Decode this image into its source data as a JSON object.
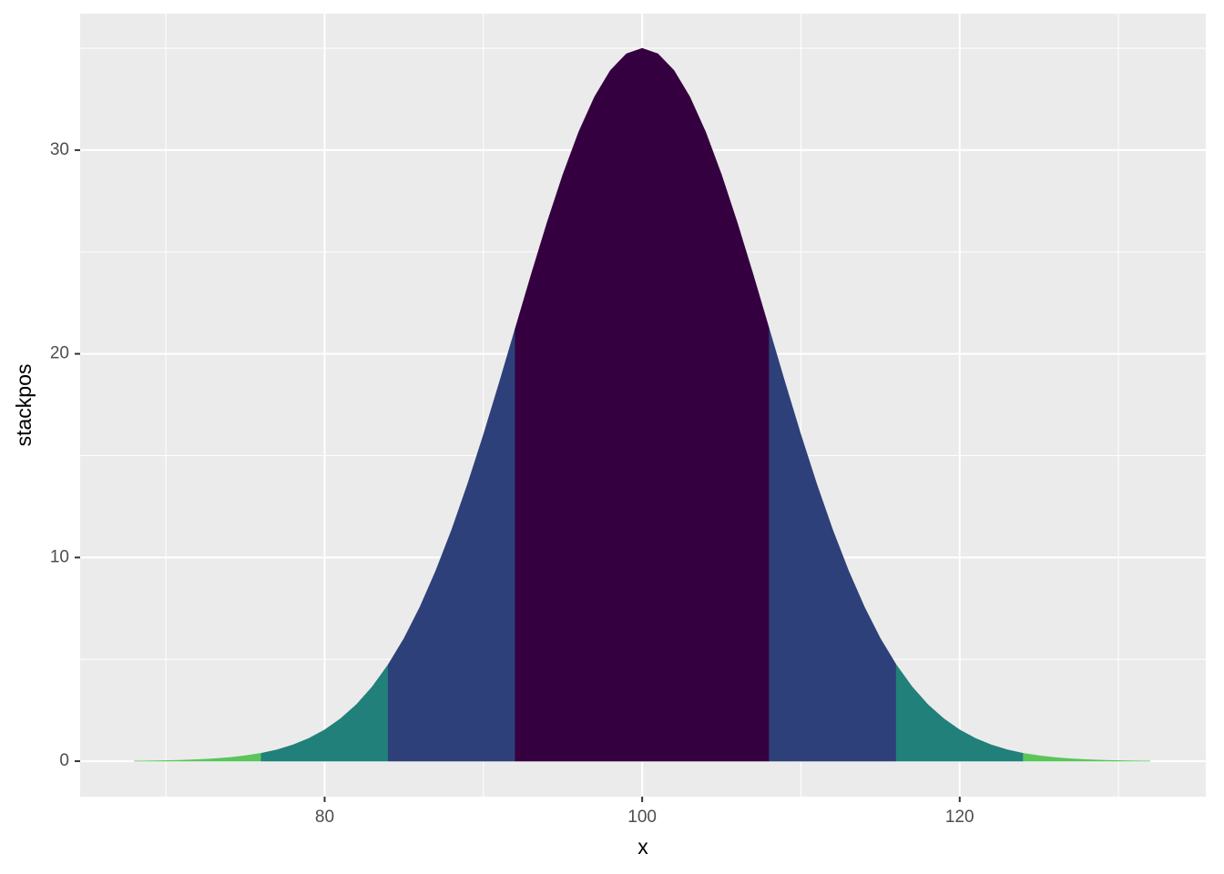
{
  "chart_data": {
    "type": "area",
    "xlabel": "x",
    "ylabel": "stackpos",
    "xlim": [
      64.6,
      135.5
    ],
    "ylim": [
      -1.74,
      36.7
    ],
    "xticks": [
      80,
      100,
      120
    ],
    "yticks": [
      0,
      10,
      20,
      30
    ],
    "xminorticks": [
      70,
      90,
      110,
      130
    ],
    "yminorticks": [
      5,
      15,
      25,
      35
    ],
    "grid": true,
    "background": "#ebebeb",
    "series": [
      {
        "color": "#5ac55b",
        "x": [
          68,
          69,
          70,
          71,
          72,
          73,
          74,
          75,
          76
        ],
        "values": [
          0.01,
          0.02,
          0.03,
          0.05,
          0.08,
          0.12,
          0.18,
          0.27,
          0.39
        ]
      },
      {
        "color": "#21807a",
        "x": [
          76,
          77,
          78,
          79,
          80,
          81,
          82,
          83,
          84
        ],
        "values": [
          0.39,
          0.56,
          0.8,
          1.12,
          1.54,
          2.09,
          2.78,
          3.66,
          4.74
        ]
      },
      {
        "color": "#2e4079",
        "x": [
          84,
          85,
          86,
          87,
          88,
          89,
          90,
          91,
          92
        ],
        "values": [
          4.74,
          6.03,
          7.57,
          9.35,
          11.36,
          13.6,
          16.02,
          18.59,
          21.23
        ]
      },
      {
        "color": "#35003f",
        "x": [
          92,
          93,
          94,
          95,
          96,
          97,
          98,
          99,
          100,
          101,
          102,
          103,
          104,
          105,
          106,
          107,
          108
        ],
        "values": [
          21.23,
          23.87,
          26.42,
          28.79,
          30.89,
          32.62,
          33.92,
          34.73,
          35,
          34.73,
          33.92,
          32.62,
          30.89,
          28.79,
          26.42,
          23.87,
          21.23
        ]
      },
      {
        "color": "#2e4079",
        "x": [
          108,
          109,
          110,
          111,
          112,
          113,
          114,
          115,
          116
        ],
        "values": [
          21.23,
          18.59,
          16.02,
          13.6,
          11.36,
          9.35,
          7.57,
          6.03,
          4.74
        ]
      },
      {
        "color": "#21807a",
        "x": [
          116,
          117,
          118,
          119,
          120,
          121,
          122,
          123,
          124
        ],
        "values": [
          4.74,
          3.66,
          2.78,
          2.09,
          1.54,
          1.12,
          0.8,
          0.56,
          0.39
        ]
      },
      {
        "color": "#5ac55b",
        "x": [
          124,
          125,
          126,
          127,
          128,
          129,
          130,
          131,
          132
        ],
        "values": [
          0.39,
          0.27,
          0.18,
          0.12,
          0.08,
          0.05,
          0.03,
          0.02,
          0.01
        ]
      }
    ]
  }
}
